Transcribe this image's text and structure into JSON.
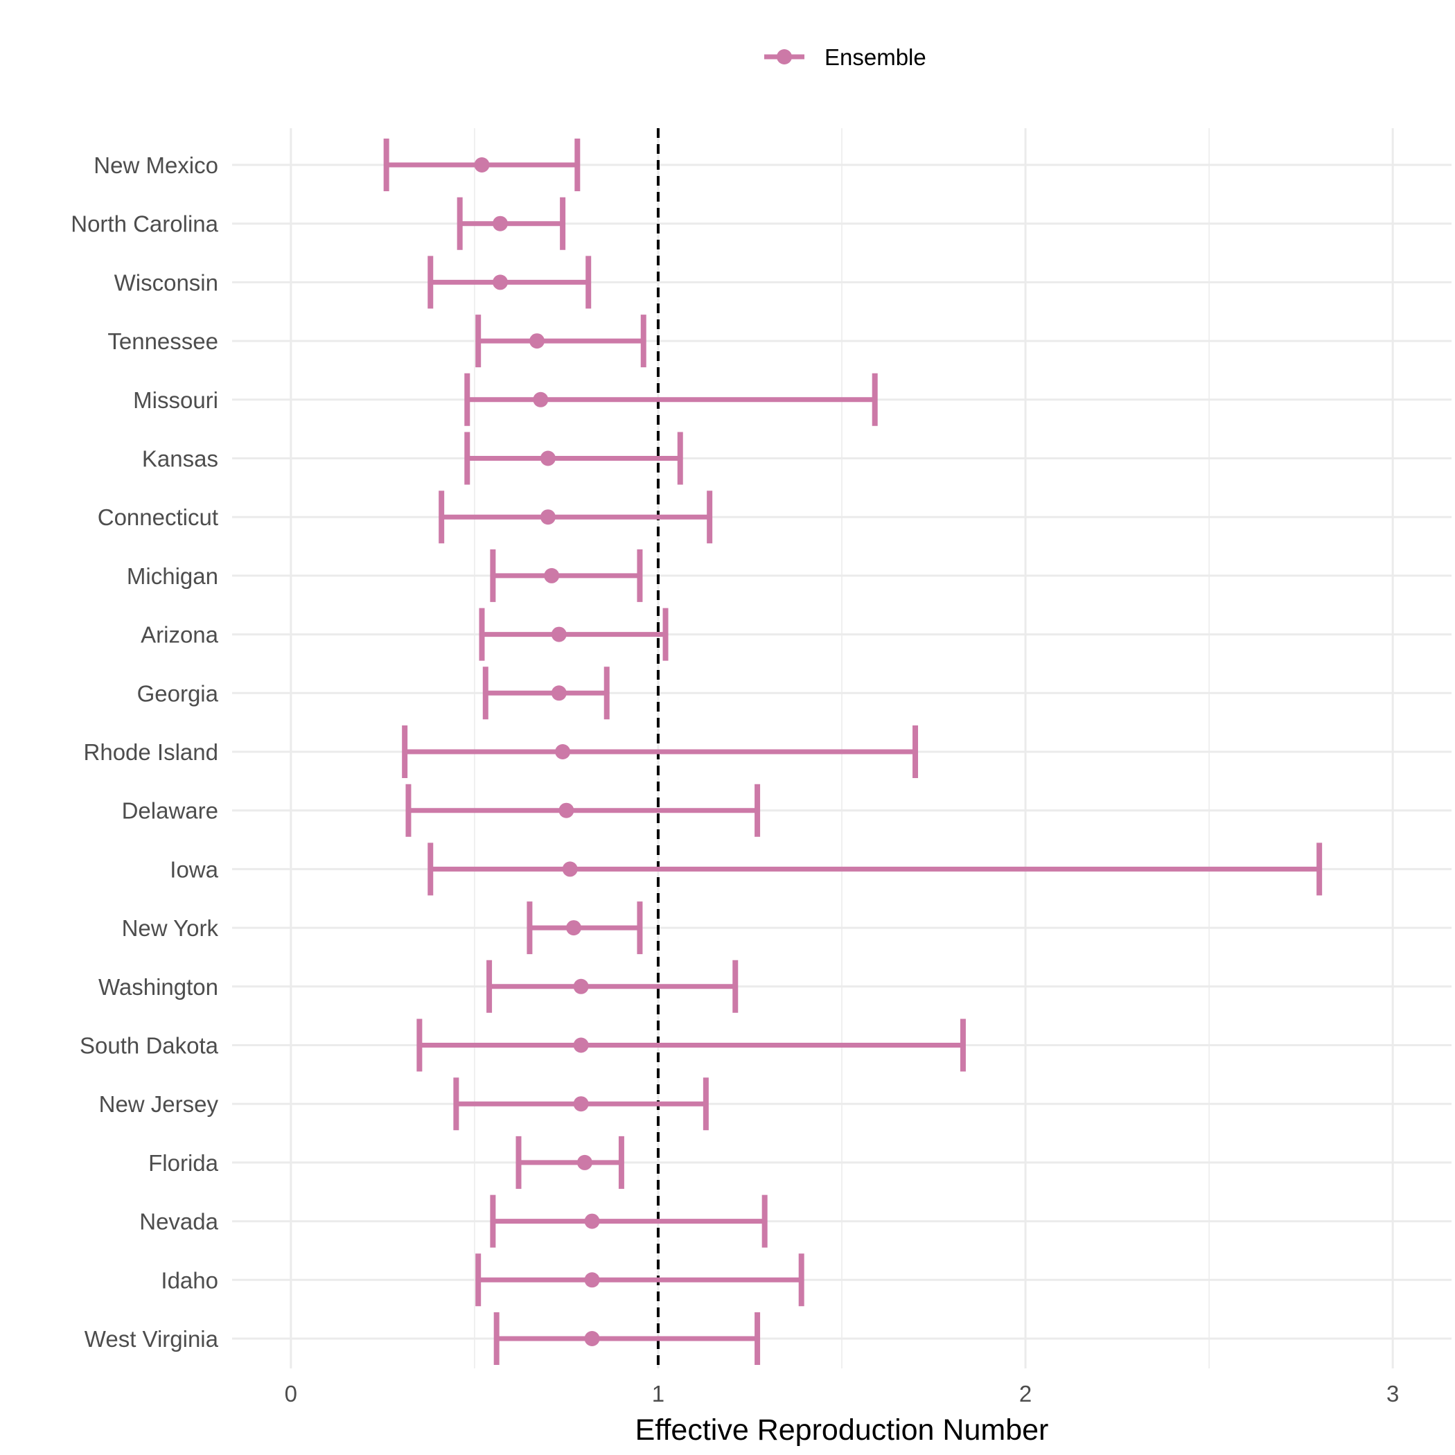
{
  "chart_data": {
    "type": "errorbar",
    "title": "",
    "xlabel": "Effective Reproduction Number",
    "ylabel": "",
    "xlim": [
      -0.16,
      3.16
    ],
    "xticks": [
      0,
      1,
      2,
      3
    ],
    "xtick_labels": [
      "0",
      "1",
      "2",
      "3"
    ],
    "reference_line": {
      "x": 1,
      "style": "dashed",
      "color": "#000000"
    },
    "grid": true,
    "legend": {
      "position": "top",
      "entries": [
        "Ensemble"
      ]
    },
    "series": [
      {
        "name": "Ensemble",
        "color": "#CC79A7",
        "points": [
          {
            "label": "New Mexico",
            "estimate": 0.52,
            "lower": 0.26,
            "upper": 0.78
          },
          {
            "label": "North Carolina",
            "estimate": 0.57,
            "lower": 0.46,
            "upper": 0.74
          },
          {
            "label": "Wisconsin",
            "estimate": 0.57,
            "lower": 0.38,
            "upper": 0.81
          },
          {
            "label": "Tennessee",
            "estimate": 0.67,
            "lower": 0.51,
            "upper": 0.96
          },
          {
            "label": "Missouri",
            "estimate": 0.68,
            "lower": 0.48,
            "upper": 1.59
          },
          {
            "label": "Kansas",
            "estimate": 0.7,
            "lower": 0.48,
            "upper": 1.06
          },
          {
            "label": "Connecticut",
            "estimate": 0.7,
            "lower": 0.41,
            "upper": 1.14
          },
          {
            "label": "Michigan",
            "estimate": 0.71,
            "lower": 0.55,
            "upper": 0.95
          },
          {
            "label": "Arizona",
            "estimate": 0.73,
            "lower": 0.52,
            "upper": 1.02
          },
          {
            "label": "Georgia",
            "estimate": 0.73,
            "lower": 0.53,
            "upper": 0.86
          },
          {
            "label": "Rhode Island",
            "estimate": 0.74,
            "lower": 0.31,
            "upper": 1.7
          },
          {
            "label": "Delaware",
            "estimate": 0.75,
            "lower": 0.32,
            "upper": 1.27
          },
          {
            "label": "Iowa",
            "estimate": 0.76,
            "lower": 0.38,
            "upper": 2.8
          },
          {
            "label": "New York",
            "estimate": 0.77,
            "lower": 0.65,
            "upper": 0.95
          },
          {
            "label": "Washington",
            "estimate": 0.79,
            "lower": 0.54,
            "upper": 1.21
          },
          {
            "label": "South Dakota",
            "estimate": 0.79,
            "lower": 0.35,
            "upper": 1.83
          },
          {
            "label": "New Jersey",
            "estimate": 0.79,
            "lower": 0.45,
            "upper": 1.13
          },
          {
            "label": "Florida",
            "estimate": 0.8,
            "lower": 0.62,
            "upper": 0.9
          },
          {
            "label": "Nevada",
            "estimate": 0.82,
            "lower": 0.55,
            "upper": 1.29
          },
          {
            "label": "Idaho",
            "estimate": 0.82,
            "lower": 0.51,
            "upper": 1.39
          },
          {
            "label": "West Virginia",
            "estimate": 0.82,
            "lower": 0.56,
            "upper": 1.27
          }
        ]
      }
    ]
  }
}
